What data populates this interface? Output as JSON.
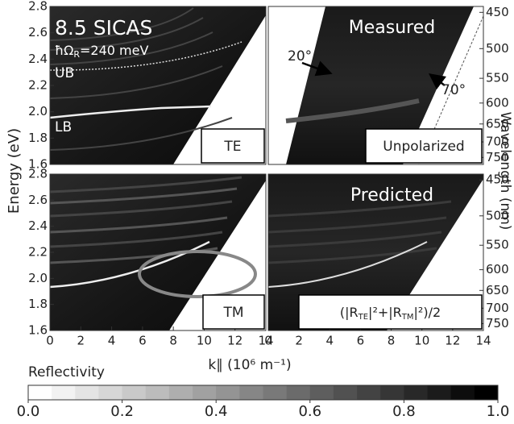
{
  "chart_data": [
    {
      "type": "heatmap",
      "title": "8.5 SICAS",
      "subtitle_parts": [
        "ħΩ",
        "R",
        "=240 meV"
      ],
      "annotations": [
        "UB",
        "LB"
      ],
      "label": "TE",
      "ylabel": "Energy (eV)",
      "xlim": [
        0,
        14
      ],
      "ylim": [
        1.6,
        2.8
      ],
      "yticks": [
        1.6,
        1.8,
        {
          "value": 2,
          "label": "2.0"
        },
        2.2,
        2.4,
        2.6,
        2.8
      ]
    },
    {
      "type": "heatmap",
      "title": "Measured",
      "annotations": [
        "20°",
        "70°"
      ],
      "label": "Unpolarized",
      "y2label": "Wavelength (nm)",
      "xlim": [
        0,
        14
      ],
      "ylim": [
        1.6,
        2.8
      ],
      "y2ticks": [
        450,
        500,
        550,
        600,
        650,
        700,
        750
      ]
    },
    {
      "type": "heatmap",
      "label": "TM",
      "xlabel": "k∥ (10⁶ m⁻¹)",
      "xlim": [
        0,
        14
      ],
      "ylim": [
        1.6,
        2.8
      ],
      "xticks": [
        0,
        2,
        4,
        6,
        8,
        10,
        12,
        14
      ],
      "yticks": [
        1.6,
        1.8,
        {
          "value": 2,
          "label": "2.0"
        },
        2.2,
        2.4,
        2.6,
        2.8
      ]
    },
    {
      "type": "heatmap",
      "title": "Predicted",
      "label_parts": [
        "(|R",
        "TE",
        "|²+|R",
        "TM",
        "|²)/2"
      ],
      "xlim": [
        0,
        14
      ],
      "ylim": [
        1.6,
        2.8
      ],
      "xticks": [
        0,
        2,
        4,
        6,
        8,
        10,
        12,
        14
      ],
      "y2ticks": [
        450,
        500,
        550,
        600,
        650,
        700,
        750
      ]
    },
    {
      "type": "colorbar",
      "title": "Reflectivity",
      "colors": [
        "#ffffff",
        "#000000"
      ],
      "xlim": [
        0,
        1
      ],
      "xticks": [
        {
          "value": 0,
          "label": "0.0"
        },
        0.2,
        0.4,
        0.6,
        0.8,
        {
          "value": 1,
          "label": "1.0"
        }
      ]
    }
  ]
}
